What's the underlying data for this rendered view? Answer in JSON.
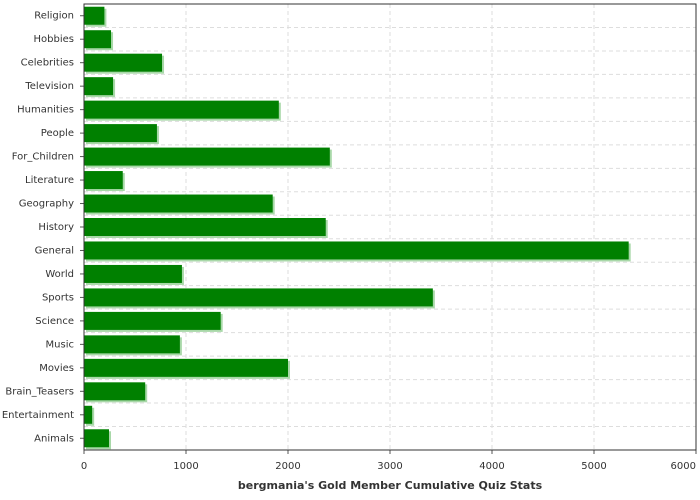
{
  "chart_data": {
    "type": "bar",
    "orientation": "horizontal",
    "x_label": "bergmania's Gold Member Cumulative Quiz Stats",
    "categories": [
      "Religion",
      "Hobbies",
      "Celebrities",
      "Television",
      "Humanities",
      "People",
      "For_Children",
      "Literature",
      "Geography",
      "History",
      "General",
      "World",
      "Sports",
      "Science",
      "Music",
      "Movies",
      "Brain_Teasers",
      "Entertainment",
      "Animals"
    ],
    "values": [
      200,
      265,
      765,
      285,
      1910,
      715,
      2410,
      380,
      1850,
      2370,
      5340,
      960,
      3420,
      1340,
      940,
      2000,
      600,
      80,
      245
    ],
    "color": "#008000",
    "xlim": [
      0,
      6000
    ],
    "xticks": [
      0,
      1000,
      2000,
      3000,
      4000,
      5000,
      6000
    ],
    "grid": true
  }
}
